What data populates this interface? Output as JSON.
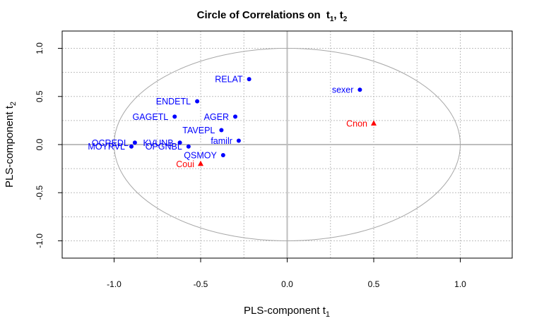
{
  "chart_data": {
    "type": "scatter",
    "title": "Circle of Correlations on",
    "title_components": [
      "t",
      "1",
      "t",
      "2"
    ],
    "xlabel": "PLS-component  t",
    "xlabel_sub": "1",
    "ylabel": "PLS-component  t",
    "ylabel_sub": "2",
    "xlim": [
      -1.3,
      1.3
    ],
    "ylim": [
      -1.18,
      1.18
    ],
    "xticks": [
      "-1.0",
      "-0.5",
      "0.0",
      "0.5",
      "1.0"
    ],
    "yticks": [
      "-1.0",
      "-0.5",
      "0.0",
      "0.5",
      "1.0"
    ],
    "grid": true,
    "colors": {
      "x_vars": "#0000ff",
      "y_vars": "#ff0000",
      "circle": "#a8a8a8",
      "axes": "#bebebe",
      "grid": "#bebebe"
    },
    "x_variables": [
      {
        "label": "RELAT",
        "x": -0.22,
        "y": 0.68
      },
      {
        "label": "sexer",
        "x": 0.42,
        "y": 0.57
      },
      {
        "label": "ENDETL",
        "x": -0.52,
        "y": 0.45
      },
      {
        "label": "GAGETL",
        "x": -0.65,
        "y": 0.29
      },
      {
        "label": "AGER",
        "x": -0.3,
        "y": 0.29
      },
      {
        "label": "TAVEPL",
        "x": -0.38,
        "y": 0.15
      },
      {
        "label": "familr",
        "x": -0.28,
        "y": 0.04
      },
      {
        "label": "OCREDL",
        "x": -0.88,
        "y": 0.02
      },
      {
        "label": "KVUNB",
        "x": -0.62,
        "y": 0.02
      },
      {
        "label": "MOYRVL",
        "x": -0.9,
        "y": -0.02
      },
      {
        "label": "OPGNBL",
        "x": -0.57,
        "y": -0.02
      },
      {
        "label": "QSMOY",
        "x": -0.37,
        "y": -0.11
      }
    ],
    "y_variables": [
      {
        "label": "Cnon",
        "x": 0.5,
        "y": 0.22
      },
      {
        "label": "Coui",
        "x": -0.5,
        "y": -0.2
      }
    ]
  }
}
